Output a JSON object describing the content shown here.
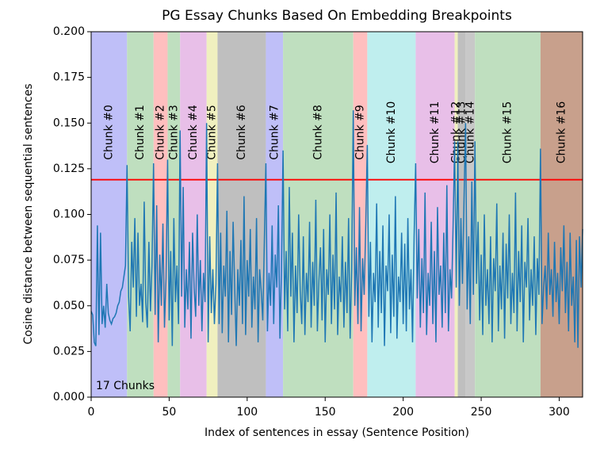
{
  "chart_data": {
    "type": "line",
    "title": "PG Essay Chunks Based On Embedding Breakpoints",
    "xlabel": "Index of sentences in essay (Sentence Position)",
    "ylabel": "Cosine distance between sequential sentences",
    "annotation": "17 Chunks",
    "xlim": [
      0,
      315
    ],
    "ylim": [
      0,
      0.2
    ],
    "xticks": [
      0,
      50,
      100,
      150,
      200,
      250,
      300
    ],
    "yticks": [
      {
        "value": 0,
        "label": "0.000"
      },
      {
        "value": 0.025,
        "label": "0.025"
      },
      {
        "value": 0.05,
        "label": "0.050"
      },
      {
        "value": 0.075,
        "label": "0.075"
      },
      {
        "value": 0.1,
        "label": "0.100"
      },
      {
        "value": 0.125,
        "label": "0.125"
      },
      {
        "value": 0.15,
        "label": "0.150"
      },
      {
        "value": 0.175,
        "label": "0.175"
      },
      {
        "value": 0.2,
        "label": "0.200"
      }
    ],
    "grid": false,
    "threshold": {
      "value": 0.119,
      "color": "#ff0000"
    },
    "spans": [
      {
        "name": "Chunk #0",
        "start": 0,
        "end": 23,
        "color": "#bfbff8"
      },
      {
        "name": "Chunk #1",
        "start": 23,
        "end": 40,
        "color": "#bfdfbf"
      },
      {
        "name": "Chunk #2",
        "start": 40,
        "end": 49,
        "color": "#ffbfbf"
      },
      {
        "name": "Chunk #3",
        "start": 49,
        "end": 57,
        "color": "#bfdfbf"
      },
      {
        "name": "Chunk #4",
        "start": 57,
        "end": 74,
        "color": "#e8bfe8"
      },
      {
        "name": "Chunk #5",
        "start": 74,
        "end": 81,
        "color": "#f0f0bf"
      },
      {
        "name": "Chunk #6",
        "start": 81,
        "end": 112,
        "color": "#bfbfbf"
      },
      {
        "name": "Chunk #7",
        "start": 112,
        "end": 123,
        "color": "#bfbff8"
      },
      {
        "name": "Chunk #8",
        "start": 123,
        "end": 168,
        "color": "#bfdfbf"
      },
      {
        "name": "Chunk #9",
        "start": 168,
        "end": 177,
        "color": "#ffbfbf"
      },
      {
        "name": "Chunk #10",
        "start": 177,
        "end": 208,
        "color": "#bfeeee"
      },
      {
        "name": "Chunk #11",
        "start": 208,
        "end": 233,
        "color": "#e8bfe8"
      },
      {
        "name": "Chunk #12",
        "start": 233,
        "end": 235,
        "color": "#f0f0bf"
      },
      {
        "name": "Chunk #13",
        "start": 235,
        "end": 240,
        "color": "#bfbfbf"
      },
      {
        "name": "Chunk #14",
        "start": 240,
        "end": 246,
        "color": "#c8c8c8"
      },
      {
        "name": "Chunk #15",
        "start": 246,
        "end": 288,
        "color": "#bfdfbf"
      },
      {
        "name": "Chunk #16",
        "start": 288,
        "end": 315,
        "color": "#c8a08c"
      }
    ],
    "x": [
      0,
      1,
      2,
      3,
      4,
      5,
      6,
      7,
      8,
      9,
      10,
      11,
      12,
      13,
      14,
      15,
      16,
      17,
      18,
      19,
      20,
      21,
      22,
      23,
      24,
      25,
      26,
      27,
      28,
      29,
      30,
      31,
      32,
      33,
      34,
      35,
      36,
      37,
      38,
      39,
      40,
      41,
      42,
      43,
      44,
      45,
      46,
      47,
      48,
      49,
      50,
      51,
      52,
      53,
      54,
      55,
      56,
      57,
      58,
      59,
      60,
      61,
      62,
      63,
      64,
      65,
      66,
      67,
      68,
      69,
      70,
      71,
      72,
      73,
      74,
      75,
      76,
      77,
      78,
      79,
      80,
      81,
      82,
      83,
      84,
      85,
      86,
      87,
      88,
      89,
      90,
      91,
      92,
      93,
      94,
      95,
      96,
      97,
      98,
      99,
      100,
      101,
      102,
      103,
      104,
      105,
      106,
      107,
      108,
      109,
      110,
      111,
      112,
      113,
      114,
      115,
      116,
      117,
      118,
      119,
      120,
      121,
      122,
      123,
      124,
      125,
      126,
      127,
      128,
      129,
      130,
      131,
      132,
      133,
      134,
      135,
      136,
      137,
      138,
      139,
      140,
      141,
      142,
      143,
      144,
      145,
      146,
      147,
      148,
      149,
      150,
      151,
      152,
      153,
      154,
      155,
      156,
      157,
      158,
      159,
      160,
      161,
      162,
      163,
      164,
      165,
      166,
      167,
      168,
      169,
      170,
      171,
      172,
      173,
      174,
      175,
      176,
      177,
      178,
      179,
      180,
      181,
      182,
      183,
      184,
      185,
      186,
      187,
      188,
      189,
      190,
      191,
      192,
      193,
      194,
      195,
      196,
      197,
      198,
      199,
      200,
      201,
      202,
      203,
      204,
      205,
      206,
      207,
      208,
      209,
      210,
      211,
      212,
      213,
      214,
      215,
      216,
      217,
      218,
      219,
      220,
      221,
      222,
      223,
      224,
      225,
      226,
      227,
      228,
      229,
      230,
      231,
      232,
      233,
      234,
      235,
      236,
      237,
      238,
      239,
      240,
      241,
      242,
      243,
      244,
      245,
      246,
      247,
      248,
      249,
      250,
      251,
      252,
      253,
      254,
      255,
      256,
      257,
      258,
      259,
      260,
      261,
      262,
      263,
      264,
      265,
      266,
      267,
      268,
      269,
      270,
      271,
      272,
      273,
      274,
      275,
      276,
      277,
      278,
      279,
      280,
      281,
      282,
      283,
      284,
      285,
      286,
      287,
      288,
      289,
      290,
      291,
      292,
      293,
      294,
      295,
      296,
      297,
      298,
      299,
      300,
      301,
      302,
      303,
      304,
      305,
      306,
      307,
      308,
      309,
      310,
      311,
      312,
      313,
      314,
      315
    ],
    "series": [
      {
        "color": "#1f77b4",
        "values": [
          0.047,
          0.045,
          0.03,
          0.028,
          0.094,
          0.034,
          0.09,
          0.04,
          0.05,
          0.038,
          0.062,
          0.046,
          0.042,
          0.04,
          0.043,
          0.044,
          0.046,
          0.05,
          0.052,
          0.058,
          0.06,
          0.066,
          0.072,
          0.127,
          0.055,
          0.036,
          0.085,
          0.06,
          0.098,
          0.044,
          0.09,
          0.05,
          0.062,
          0.041,
          0.107,
          0.052,
          0.038,
          0.085,
          0.047,
          0.072,
          0.128,
          0.045,
          0.105,
          0.03,
          0.078,
          0.05,
          0.095,
          0.038,
          0.065,
          0.13,
          0.042,
          0.08,
          0.028,
          0.098,
          0.052,
          0.072,
          0.04,
          0.146,
          0.055,
          0.115,
          0.038,
          0.07,
          0.048,
          0.085,
          0.032,
          0.09,
          0.06,
          0.044,
          0.1,
          0.05,
          0.075,
          0.036,
          0.068,
          0.052,
          0.15,
          0.03,
          0.088,
          0.046,
          0.07,
          0.04,
          0.062,
          0.128,
          0.04,
          0.09,
          0.035,
          0.072,
          0.055,
          0.102,
          0.03,
          0.08,
          0.045,
          0.096,
          0.06,
          0.028,
          0.07,
          0.05,
          0.086,
          0.04,
          0.11,
          0.034,
          0.075,
          0.055,
          0.092,
          0.038,
          0.066,
          0.048,
          0.098,
          0.03,
          0.07,
          0.058,
          0.042,
          0.085,
          0.128,
          0.036,
          0.068,
          0.05,
          0.094,
          0.04,
          0.078,
          0.06,
          0.105,
          0.032,
          0.07,
          0.135,
          0.048,
          0.08,
          0.036,
          0.115,
          0.055,
          0.09,
          0.03,
          0.072,
          0.046,
          0.1,
          0.058,
          0.04,
          0.088,
          0.034,
          0.068,
          0.052,
          0.096,
          0.038,
          0.074,
          0.05,
          0.108,
          0.036,
          0.064,
          0.082,
          0.042,
          0.092,
          0.03,
          0.07,
          0.056,
          0.1,
          0.04,
          0.078,
          0.048,
          0.112,
          0.034,
          0.066,
          0.052,
          0.088,
          0.038,
          0.074,
          0.046,
          0.098,
          0.032,
          0.07,
          0.157,
          0.05,
          0.082,
          0.04,
          0.104,
          0.036,
          0.076,
          0.056,
          0.094,
          0.138,
          0.044,
          0.085,
          0.03,
          0.068,
          0.052,
          0.106,
          0.038,
          0.08,
          0.046,
          0.094,
          0.028,
          0.072,
          0.058,
          0.1,
          0.035,
          0.078,
          0.044,
          0.11,
          0.032,
          0.066,
          0.052,
          0.09,
          0.04,
          0.084,
          0.036,
          0.098,
          0.048,
          0.07,
          0.03,
          0.088,
          0.128,
          0.054,
          0.092,
          0.038,
          0.076,
          0.046,
          0.112,
          0.034,
          0.068,
          0.05,
          0.096,
          0.04,
          0.08,
          0.03,
          0.104,
          0.056,
          0.072,
          0.038,
          0.09,
          0.046,
          0.116,
          0.036,
          0.07,
          0.054,
          0.094,
          0.14,
          0.06,
          0.14,
          0.05,
          0.098,
          0.062,
          0.108,
          0.15,
          0.048,
          0.088,
          0.04,
          0.118,
          0.056,
          0.14,
          0.062,
          0.096,
          0.042,
          0.078,
          0.034,
          0.1,
          0.05,
          0.07,
          0.04,
          0.088,
          0.03,
          0.076,
          0.058,
          0.106,
          0.036,
          0.072,
          0.048,
          0.09,
          0.032,
          0.084,
          0.054,
          0.1,
          0.04,
          0.068,
          0.046,
          0.112,
          0.036,
          0.08,
          0.052,
          0.094,
          0.03,
          0.074,
          0.06,
          0.098,
          0.042,
          0.07,
          0.05,
          0.088,
          0.034,
          0.076,
          0.056,
          0.136,
          0.04,
          0.06,
          0.072,
          0.048,
          0.09,
          0.056,
          0.07,
          0.044,
          0.085,
          0.052,
          0.068,
          0.04,
          0.082,
          0.058,
          0.094,
          0.046,
          0.074,
          0.036,
          0.09,
          0.05,
          0.066,
          0.03,
          0.086,
          0.027,
          0.088,
          0.06,
          0.092
        ]
      }
    ]
  }
}
